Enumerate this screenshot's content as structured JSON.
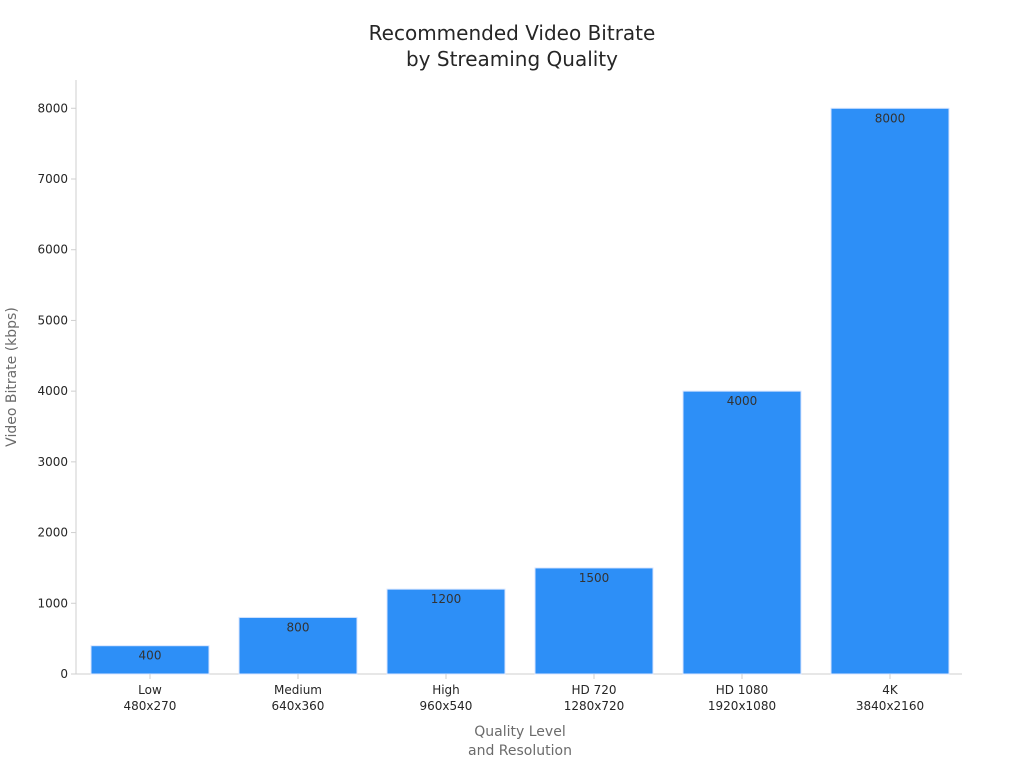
{
  "chart_data": {
    "type": "bar",
    "title": [
      "Recommended Video Bitrate",
      "by Streaming Quality"
    ],
    "xlabel": [
      "Quality Level",
      "and Resolution"
    ],
    "ylabel": "Video Bitrate (kbps)",
    "categories": [
      [
        "Low",
        "480x270"
      ],
      [
        "Medium",
        "640x360"
      ],
      [
        "High",
        "960x540"
      ],
      [
        "HD 720",
        "1280x720"
      ],
      [
        "HD 1080",
        "1920x1080"
      ],
      [
        "4K",
        "3840x2160"
      ]
    ],
    "values": [
      400,
      800,
      1200,
      1500,
      4000,
      8000
    ],
    "ylim": [
      0,
      8400
    ],
    "yticks": [
      0,
      1000,
      2000,
      3000,
      4000,
      5000,
      6000,
      7000,
      8000
    ],
    "grid": false,
    "legend": "none",
    "colors": {
      "bar": "#2d8ff7",
      "bar_edge": "#d9e6ff",
      "axis": "#cfcfcf",
      "title": "#262626",
      "label": "#6b6b6b",
      "tick": "#262626",
      "data_label": "#333333"
    }
  }
}
